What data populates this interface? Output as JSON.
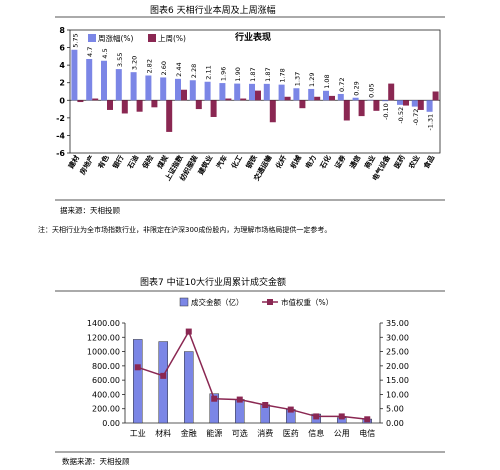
{
  "chart1": {
    "title": "图表6  天相行业本周及上周涨幅",
    "inner_title": "行业表现",
    "legend": {
      "this_week": "周涨幅(%)",
      "last_week": "上周(%)"
    },
    "colors": {
      "this_week": "#7b86e6",
      "last_week": "#8a2752"
    },
    "source": "据来源：天相投顾",
    "note": "注：天相行业为全市场指数行业，非限定在沪深300成份股内，为理解市场格局提供一定参考。",
    "chart_data": {
      "type": "bar",
      "ylim": [
        -6,
        8
      ],
      "yticks": [
        "8",
        "6",
        "4",
        "2",
        "0",
        "-2",
        "-4",
        "-6"
      ],
      "categories": [
        "建材",
        "房地产",
        "有色",
        "银行",
        "石油",
        "保险",
        "煤炭",
        "上证指数",
        "纺织服装",
        "建筑业",
        "汽车",
        "化工",
        "钢铁",
        "交通运输",
        "化纤",
        "机械",
        "电力",
        "石化",
        "证券",
        "通信",
        "商业",
        "电气设备",
        "医药",
        "农业",
        "食品"
      ],
      "series": [
        {
          "name": "周涨幅(%)",
          "values": [
            5.75,
            4.7,
            4.5,
            3.55,
            3.2,
            2.82,
            2.6,
            2.44,
            2.28,
            2.11,
            1.96,
            1.9,
            1.87,
            1.87,
            1.78,
            1.37,
            1.29,
            1.08,
            0.72,
            0.29,
            0.05,
            -0.1,
            -0.52,
            -0.72,
            -1.31
          ]
        },
        {
          "name": "上周(%)",
          "values": [
            -0.2,
            0.2,
            -1.1,
            -1.5,
            -1.3,
            -0.8,
            -3.6,
            1.2,
            -1.0,
            -1.9,
            0.2,
            0.2,
            1.1,
            -2.5,
            0.4,
            -0.9,
            0.4,
            0.5,
            -2.3,
            -1.8,
            -1.2,
            1.9,
            -0.6,
            -1.1,
            1.0
          ]
        }
      ],
      "data_labels": [
        "5.75",
        "4.7",
        "4.5",
        "3.55",
        "3.20",
        "2.82",
        "2.60",
        "2.44",
        "2.28",
        "2.11",
        "1.96",
        "1.90",
        "1.87",
        "1.87",
        "1.78",
        "1.37",
        "1.29",
        "1.08",
        "0.72",
        "0.29",
        "0.05",
        "-0.10",
        "-0.52",
        "-0.72",
        "-1.31"
      ]
    }
  },
  "chart2": {
    "title": "图表7  中证10大行业周累计成交金额",
    "legend": {
      "bars": "成交金额（亿）",
      "line": "市值权重（%）"
    },
    "colors": {
      "bars": "#7b86e6",
      "line": "#8a2752"
    },
    "source": "数据来源：天相投顾",
    "chart_data": {
      "type": "bar",
      "categories": [
        "工业",
        "材料",
        "金融",
        "能源",
        "可选",
        "消费",
        "医药",
        "信息",
        "公用",
        "电信"
      ],
      "series": [
        {
          "name": "成交金额（亿）",
          "axis": "left",
          "values": [
            1170,
            1140,
            1000,
            410,
            330,
            255,
            190,
            125,
            75,
            55
          ]
        },
        {
          "name": "市值权重（%）",
          "axis": "right",
          "type": "line",
          "values": [
            19.5,
            16.5,
            32.0,
            8.5,
            8.2,
            6.3,
            4.7,
            2.3,
            2.3,
            1.3
          ]
        }
      ],
      "ylim_left": [
        0,
        1400
      ],
      "ylim_right": [
        0,
        35
      ],
      "yticks_left": [
        "1400.00",
        "1200.00",
        "1000.00",
        "800.00",
        "600.00",
        "400.00",
        "200.00",
        "0.00"
      ],
      "yticks_right": [
        "35.00",
        "30.00",
        "25.00",
        "20.00",
        "15.00",
        "10.00",
        "5.00",
        "0.00"
      ]
    }
  }
}
